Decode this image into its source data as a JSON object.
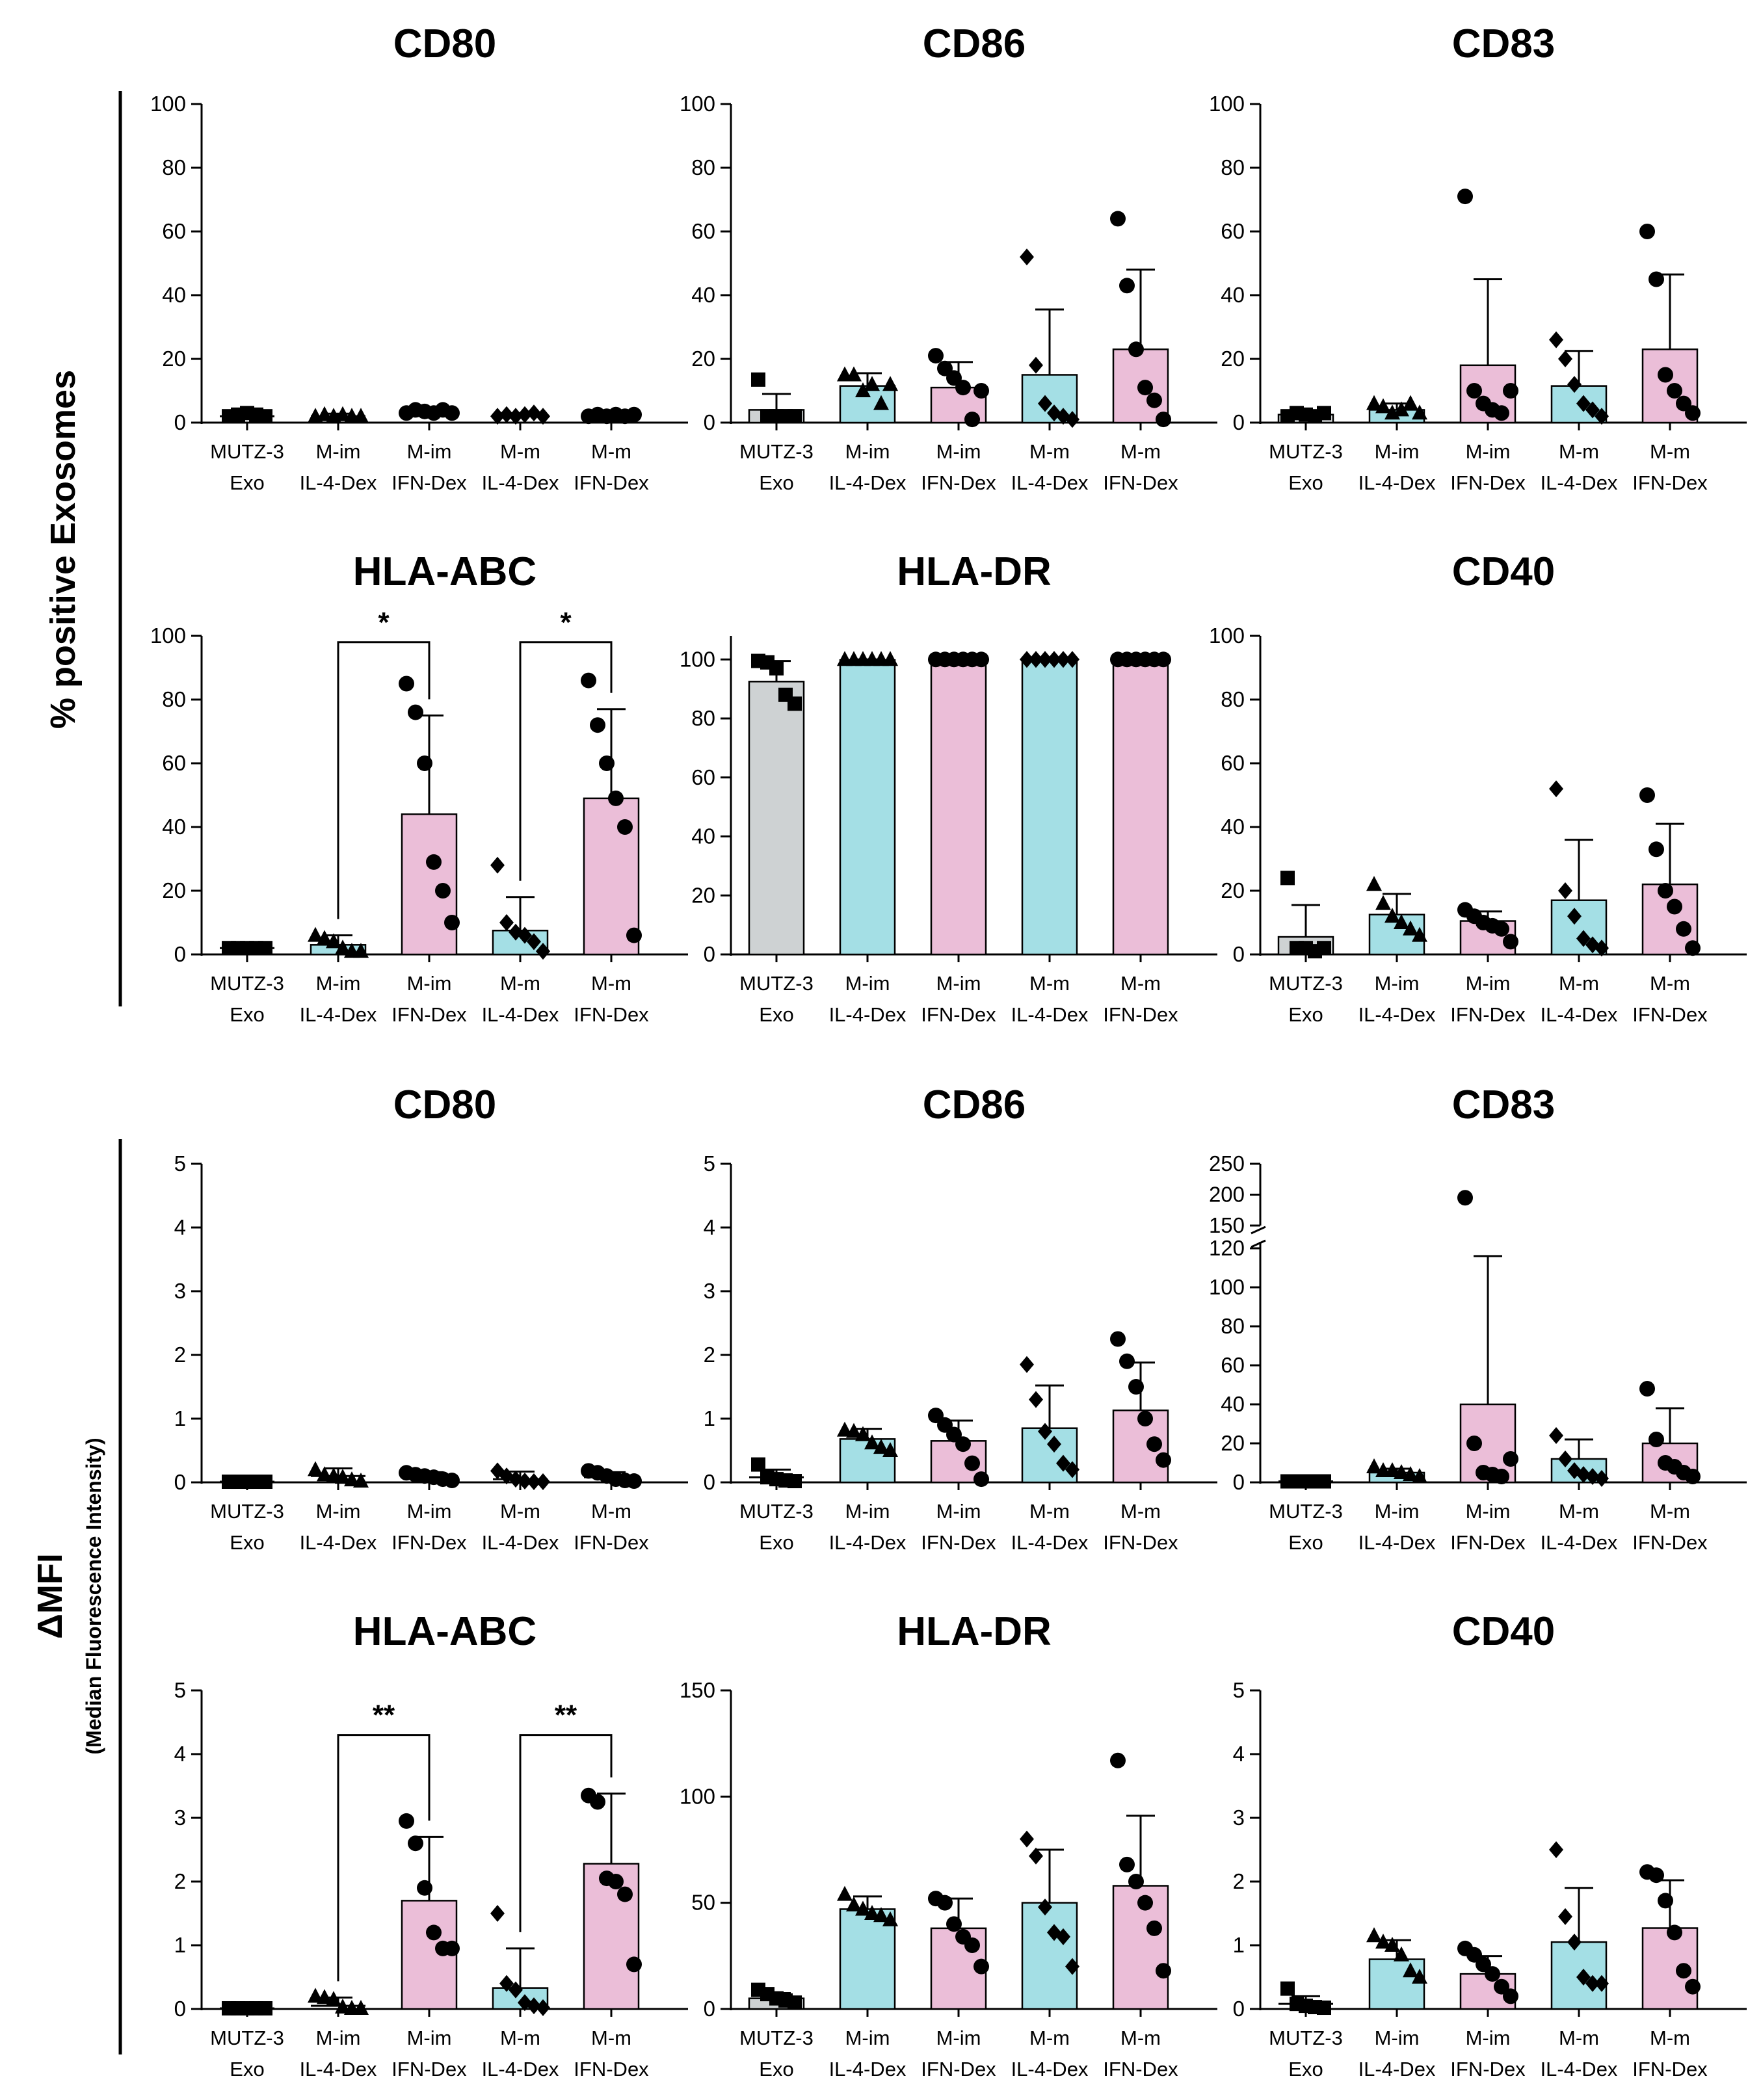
{
  "figure": {
    "section_labels": {
      "percent": {
        "main": "% positive Exosomes",
        "sub": ""
      },
      "mfi": {
        "main": "ΔMFI",
        "sub": "(Median Fluorescence Intensity)"
      }
    },
    "colors": {
      "mutz": "#ced2d3",
      "im": "#a4dfe5",
      "m": "#ebbed8",
      "axis": "#000000"
    },
    "marker_shapes": [
      "square",
      "triangle",
      "circle",
      "diamond",
      "circle"
    ],
    "categories_line1": [
      "MUTZ-3",
      "M-im",
      "M-im",
      "M-m",
      "M-m"
    ],
    "categories_line2": [
      "Exo",
      "IL-4-Dex",
      "IFN-Dex",
      "IL-4-Dex",
      "IFN-Dex"
    ]
  },
  "chart_data": [
    {
      "id": "p-cd80",
      "type": "bar",
      "title": "CD80",
      "ylim": [
        0,
        100
      ],
      "yticks": [
        0,
        20,
        40,
        60,
        80,
        100
      ],
      "categories": [
        "MUTZ-3 Exo",
        "M-im IL-4-Dex",
        "M-im IFN-Dex",
        "M-m IL-4-Dex",
        "M-m IFN-Dex"
      ],
      "fill": [
        "none",
        "none",
        "none",
        "none",
        "none"
      ],
      "values": [
        2,
        2,
        3,
        2,
        2
      ],
      "sd": [
        0.8,
        0.8,
        1.2,
        0.8,
        0.8
      ],
      "points": [
        [
          2,
          2.5,
          3,
          2.5,
          2
        ],
        [
          2,
          2.5,
          2,
          2.5,
          2,
          2
        ],
        [
          3,
          4,
          3.5,
          3,
          4,
          3
        ],
        [
          2,
          2.5,
          2,
          2.5,
          3,
          2
        ],
        [
          2,
          2.5,
          2,
          2.5,
          2,
          2.5
        ]
      ],
      "significance": []
    },
    {
      "id": "p-cd86",
      "type": "bar",
      "title": "CD86",
      "ylim": [
        0,
        100
      ],
      "yticks": [
        0,
        20,
        40,
        60,
        80,
        100
      ],
      "categories": [
        "MUTZ-3 Exo",
        "M-im IL-4-Dex",
        "M-im IFN-Dex",
        "M-m IL-4-Dex",
        "M-m IFN-Dex"
      ],
      "fill": [
        "mutz",
        "im",
        "m",
        "im",
        "m"
      ],
      "values": [
        4,
        11.5,
        11,
        15,
        23
      ],
      "sd": [
        5,
        4,
        8,
        20.5,
        25
      ],
      "points": [
        [
          13.5,
          2,
          2,
          2,
          2
        ],
        [
          15,
          15,
          10,
          12,
          6,
          12
        ],
        [
          21,
          17,
          14,
          11,
          1,
          10
        ],
        [
          52,
          18,
          6,
          3,
          2,
          1
        ],
        [
          64,
          43,
          23,
          11,
          7,
          1
        ]
      ],
      "significance": []
    },
    {
      "id": "p-cd83",
      "type": "bar",
      "title": "CD83",
      "ylim": [
        0,
        100
      ],
      "yticks": [
        0,
        20,
        40,
        60,
        80,
        100
      ],
      "categories": [
        "MUTZ-3 Exo",
        "M-im IL-4-Dex",
        "M-im IFN-Dex",
        "M-m IL-4-Dex",
        "M-m IFN-Dex"
      ],
      "fill": [
        "mutz",
        "im",
        "m",
        "im",
        "m"
      ],
      "values": [
        2.5,
        4,
        18,
        11.5,
        23
      ],
      "sd": [
        0.8,
        2,
        27,
        11,
        23.5
      ],
      "points": [
        [
          2,
          3,
          2.5,
          2,
          3
        ],
        [
          6,
          5,
          3,
          4,
          6,
          3
        ],
        [
          71,
          10,
          6,
          4,
          3,
          10
        ],
        [
          26,
          20,
          12,
          6,
          4,
          2
        ],
        [
          60,
          45,
          15,
          10,
          6,
          3
        ]
      ],
      "significance": []
    },
    {
      "id": "p-hlaabc",
      "type": "bar",
      "title": "HLA-ABC",
      "ylim": [
        0,
        100
      ],
      "yticks": [
        0,
        20,
        40,
        60,
        80,
        100
      ],
      "categories": [
        "MUTZ-3 Exo",
        "M-im IL-4-Dex",
        "M-im IFN-Dex",
        "M-m IL-4-Dex",
        "M-m IFN-Dex"
      ],
      "fill": [
        "none",
        "im",
        "m",
        "im",
        "m"
      ],
      "values": [
        2,
        3,
        44,
        7.5,
        49
      ],
      "sd": [
        0.5,
        3,
        31,
        10.5,
        28
      ],
      "points": [
        [
          2,
          2,
          2,
          2,
          2
        ],
        [
          6,
          5,
          4,
          2,
          1,
          1
        ],
        [
          85,
          76,
          60,
          29,
          20,
          10
        ],
        [
          28,
          10,
          7,
          6,
          4,
          1
        ],
        [
          86,
          72,
          60,
          49,
          40,
          6
        ]
      ],
      "significance": [
        {
          "from": 1,
          "to": 2,
          "label": "*",
          "y": 98
        },
        {
          "from": 3,
          "to": 4,
          "label": "*",
          "y": 98
        }
      ]
    },
    {
      "id": "p-hladr",
      "type": "bar",
      "title": "HLA-DR",
      "ylim": [
        0,
        108
      ],
      "yticks": [
        0,
        20,
        40,
        60,
        80,
        100
      ],
      "categories": [
        "MUTZ-3 Exo",
        "M-im IL-4-Dex",
        "M-im IFN-Dex",
        "M-m IL-4-Dex",
        "M-m IFN-Dex"
      ],
      "fill": [
        "mutz",
        "im",
        "m",
        "im",
        "m"
      ],
      "values": [
        92.5,
        99.8,
        99.8,
        99.8,
        99.8
      ],
      "sd": [
        7,
        0.2,
        0.2,
        0.2,
        0.2
      ],
      "points": [
        [
          99.5,
          99,
          97,
          88,
          85
        ],
        [
          100,
          100,
          100,
          100,
          100,
          100
        ],
        [
          100,
          100,
          100,
          100,
          100,
          100
        ],
        [
          100,
          100,
          100,
          100,
          100,
          100
        ],
        [
          100,
          100,
          100,
          100,
          100,
          100
        ]
      ],
      "significance": []
    },
    {
      "id": "p-cd40",
      "type": "bar",
      "title": "CD40",
      "ylim": [
        0,
        100
      ],
      "yticks": [
        0,
        20,
        40,
        60,
        80,
        100
      ],
      "categories": [
        "MUTZ-3 Exo",
        "M-im IL-4-Dex",
        "M-im IFN-Dex",
        "M-m IL-4-Dex",
        "M-m IFN-Dex"
      ],
      "fill": [
        "mutz",
        "im",
        "m",
        "im",
        "m"
      ],
      "values": [
        5.5,
        12.5,
        10.5,
        17,
        22
      ],
      "sd": [
        10,
        6.5,
        3,
        19,
        19
      ],
      "points": [
        [
          24,
          2,
          2,
          1,
          2
        ],
        [
          22,
          16,
          12,
          10,
          8,
          6
        ],
        [
          14,
          12,
          10,
          9,
          8,
          4
        ],
        [
          52,
          20,
          12,
          5,
          3,
          2
        ],
        [
          50,
          33,
          20,
          15,
          8,
          2
        ]
      ],
      "significance": []
    },
    {
      "id": "m-cd80",
      "type": "bar",
      "title": "CD80",
      "ylim": [
        0,
        5
      ],
      "yticks": [
        0,
        1,
        2,
        3,
        4,
        5
      ],
      "categories": [
        "MUTZ-3 Exo",
        "M-im IL-4-Dex",
        "M-im IFN-Dex",
        "M-m IL-4-Dex",
        "M-m IFN-Dex"
      ],
      "fill": [
        "none",
        "none",
        "none",
        "none",
        "none"
      ],
      "values": [
        0.01,
        0.1,
        0.1,
        0.05,
        0.08
      ],
      "sd": [
        0.01,
        0.12,
        0.06,
        0.12,
        0.08
      ],
      "points": [
        [
          0.01,
          0.01,
          0.01,
          0.01,
          0.01
        ],
        [
          0.2,
          0.12,
          0.1,
          0.08,
          0.04,
          0.02
        ],
        [
          0.15,
          0.12,
          0.1,
          0.08,
          0.05,
          0.03
        ],
        [
          0.18,
          0.1,
          0.05,
          0.02,
          0.01,
          0.01
        ],
        [
          0.18,
          0.15,
          0.1,
          0.05,
          0.03,
          0.02
        ]
      ],
      "significance": []
    },
    {
      "id": "m-cd86",
      "type": "bar",
      "title": "CD86",
      "ylim": [
        0,
        5
      ],
      "yticks": [
        0,
        1,
        2,
        3,
        4,
        5
      ],
      "categories": [
        "MUTZ-3 Exo",
        "M-im IL-4-Dex",
        "M-im IFN-Dex",
        "M-m IL-4-Dex",
        "M-m IFN-Dex"
      ],
      "fill": [
        "none",
        "im",
        "m",
        "im",
        "m"
      ],
      "values": [
        0.08,
        0.68,
        0.65,
        0.85,
        1.13
      ],
      "sd": [
        0.12,
        0.16,
        0.32,
        0.67,
        0.75
      ],
      "points": [
        [
          0.28,
          0.08,
          0.05,
          0.03,
          0.02
        ],
        [
          0.82,
          0.8,
          0.75,
          0.62,
          0.55,
          0.5
        ],
        [
          1.05,
          0.9,
          0.75,
          0.6,
          0.3,
          0.05
        ],
        [
          1.85,
          1.3,
          0.8,
          0.6,
          0.3,
          0.2
        ],
        [
          2.25,
          1.9,
          1.5,
          1.0,
          0.6,
          0.35
        ]
      ],
      "significance": []
    },
    {
      "id": "m-cd83",
      "type": "bar",
      "title": "CD83",
      "ylim": [
        0,
        120
      ],
      "yticks": [
        0,
        20,
        40,
        60,
        80,
        100,
        120
      ],
      "upper_ticks": [
        150,
        200,
        250
      ],
      "break": true,
      "categories": [
        "MUTZ-3 Exo",
        "M-im IL-4-Dex",
        "M-im IFN-Dex",
        "M-m IL-4-Dex",
        "M-m IFN-Dex"
      ],
      "fill": [
        "none",
        "im",
        "m",
        "im",
        "m"
      ],
      "values": [
        0.5,
        5,
        40,
        12,
        20
      ],
      "sd": [
        0.5,
        2,
        76,
        10,
        18
      ],
      "points": [
        [
          0.5,
          0.5,
          0.5,
          0.5,
          0.5
        ],
        [
          8,
          6,
          6,
          5,
          4,
          3
        ],
        [
          195,
          20,
          5,
          4,
          3,
          12
        ],
        [
          24,
          12,
          6,
          4,
          3,
          2
        ],
        [
          48,
          22,
          10,
          8,
          5,
          3
        ]
      ],
      "significance": []
    },
    {
      "id": "m-hlaabc",
      "type": "bar",
      "title": "HLA-ABC",
      "ylim": [
        0,
        5
      ],
      "yticks": [
        0,
        1,
        2,
        3,
        4,
        5
      ],
      "categories": [
        "MUTZ-3 Exo",
        "M-im IL-4-Dex",
        "M-im IFN-Dex",
        "M-m IL-4-Dex",
        "M-m IFN-Dex"
      ],
      "fill": [
        "none",
        "none",
        "m",
        "im",
        "m"
      ],
      "values": [
        0.01,
        0.05,
        1.7,
        0.33,
        2.28
      ],
      "sd": [
        0.01,
        0.13,
        1.0,
        0.62,
        1.1
      ],
      "points": [
        [
          0.01,
          0.01,
          0.01,
          0.01,
          0.01
        ],
        [
          0.2,
          0.18,
          0.15,
          0.03,
          0.01,
          0.01
        ],
        [
          2.95,
          2.6,
          1.9,
          1.2,
          0.95,
          0.95
        ],
        [
          1.5,
          0.4,
          0.3,
          0.1,
          0.05,
          0.02
        ],
        [
          3.35,
          3.25,
          2.05,
          2.0,
          1.8,
          0.7
        ]
      ],
      "significance": [
        {
          "from": 1,
          "to": 2,
          "label": "**",
          "y": 4.3
        },
        {
          "from": 3,
          "to": 4,
          "label": "**",
          "y": 4.3
        }
      ]
    },
    {
      "id": "m-hladr",
      "type": "bar",
      "title": "HLA-DR",
      "ylim": [
        0,
        150
      ],
      "yticks": [
        0,
        50,
        100,
        150
      ],
      "categories": [
        "MUTZ-3 Exo",
        "M-im IL-4-Dex",
        "M-im IFN-Dex",
        "M-m IL-4-Dex",
        "M-m IFN-Dex"
      ],
      "fill": [
        "mutz",
        "im",
        "m",
        "im",
        "m"
      ],
      "values": [
        5,
        47,
        38,
        50,
        58
      ],
      "sd": [
        2.5,
        6,
        14,
        25,
        33
      ],
      "points": [
        [
          9,
          7,
          5,
          4,
          3
        ],
        [
          54,
          49,
          47,
          45,
          44,
          42
        ],
        [
          52,
          50,
          40,
          34,
          30,
          20
        ],
        [
          80,
          72,
          48,
          36,
          34,
          20
        ],
        [
          117,
          68,
          60,
          50,
          38,
          18
        ]
      ],
      "significance": []
    },
    {
      "id": "m-cd40",
      "type": "bar",
      "title": "CD40",
      "ylim": [
        0,
        5
      ],
      "yticks": [
        0,
        1,
        2,
        3,
        4,
        5
      ],
      "categories": [
        "MUTZ-3 Exo",
        "M-im IL-4-Dex",
        "M-im IFN-Dex",
        "M-m IL-4-Dex",
        "M-m IFN-Dex"
      ],
      "fill": [
        "none",
        "im",
        "m",
        "im",
        "m"
      ],
      "values": [
        0.08,
        0.78,
        0.55,
        1.05,
        1.27
      ],
      "sd": [
        0.12,
        0.3,
        0.28,
        0.85,
        0.75
      ],
      "points": [
        [
          0.32,
          0.08,
          0.05,
          0.03,
          0.02
        ],
        [
          1.15,
          1.05,
          1.0,
          0.85,
          0.6,
          0.5
        ],
        [
          0.95,
          0.85,
          0.7,
          0.55,
          0.35,
          0.2
        ],
        [
          2.5,
          1.45,
          1.05,
          0.5,
          0.4,
          0.4
        ],
        [
          2.15,
          2.1,
          1.7,
          1.2,
          0.6,
          0.35
        ]
      ],
      "significance": []
    }
  ]
}
